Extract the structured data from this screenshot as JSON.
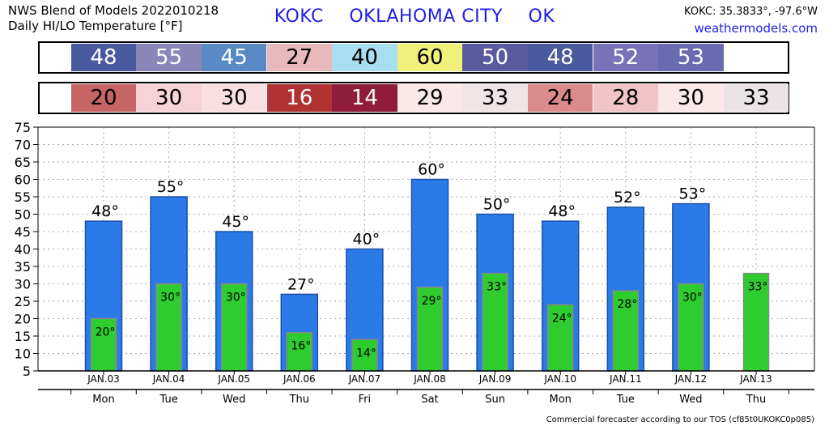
{
  "header": {
    "title_line1": "NWS Blend of Models 2022010218",
    "title_line2": "Daily HI/LO Temperature [°F]",
    "station_code": "KOKC",
    "station_name": "OKLAHOMA CITY",
    "station_state": "OK",
    "coords": "KOKC: 35.3833°, -97.6°W",
    "site": "weathermodels.com"
  },
  "footer": "Commercial forecaster according to our TOS (cf85t0UKOKC0p085)",
  "colors": {
    "high_bar": "#2a7be8",
    "high_bar_border": "#1d4fa8",
    "low_bar": "#2ecc2e",
    "low_bar_border": "#888888",
    "grid": "#aaaaaa",
    "hi_cells": [
      "#4a5a9e",
      "#8b86b8",
      "#5a8ac4",
      "#e7b9bd",
      "#a8dff0",
      "#f0f07a",
      "#5a5b9e",
      "#4a5a9e",
      "#7a72b8",
      "#6a6ab0"
    ],
    "lo_cells": [
      "#c76565",
      "#f7d2d6",
      "#f9dfe1",
      "#b03232",
      "#8e1c3a",
      "#fce7e9",
      "#efe4e6",
      "#db8b8b",
      "#f1c4c7",
      "#fce7e9",
      "#ebe4e6"
    ]
  },
  "hi_strip": [
    "48",
    "55",
    "45",
    "27",
    "40",
    "60",
    "50",
    "48",
    "52",
    "53"
  ],
  "lo_strip": [
    "20",
    "30",
    "30",
    "16",
    "14",
    "29",
    "33",
    "24",
    "28",
    "30",
    "33"
  ],
  "chart_data": {
    "type": "bar",
    "categories": [
      "JAN.03",
      "JAN.04",
      "JAN.05",
      "JAN.06",
      "JAN.07",
      "JAN.08",
      "JAN.09",
      "JAN.10",
      "JAN.11",
      "JAN.12",
      "JAN.13"
    ],
    "weekdays": [
      "Mon",
      "Tue",
      "Wed",
      "Thu",
      "Fri",
      "Sat",
      "Sun",
      "Mon",
      "Tue",
      "Wed",
      "Thu"
    ],
    "series": [
      {
        "values": [
          48,
          55,
          45,
          27,
          40,
          60,
          50,
          48,
          52,
          53,
          null
        ]
      },
      {
        "values": [
          20,
          30,
          30,
          16,
          14,
          29,
          33,
          24,
          28,
          30,
          33
        ]
      }
    ],
    "hi_labels": [
      "48°",
      "55°",
      "45°",
      "27°",
      "40°",
      "60°",
      "50°",
      "48°",
      "52°",
      "53°",
      ""
    ],
    "lo_labels": [
      "20°",
      "30°",
      "30°",
      "16°",
      "14°",
      "29°",
      "33°",
      "24°",
      "28°",
      "30°",
      "33°"
    ],
    "ylim": [
      5,
      75
    ],
    "yticks": [
      5,
      10,
      15,
      20,
      25,
      30,
      35,
      40,
      45,
      50,
      55,
      60,
      65,
      70,
      75
    ],
    "grid": true
  }
}
